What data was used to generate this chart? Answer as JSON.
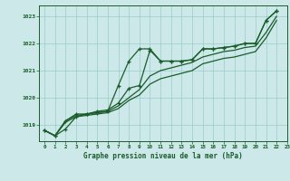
{
  "title": "Graphe pression niveau de la mer (hPa)",
  "background_color": "#cce8e8",
  "plot_bg_color": "#cce8e8",
  "grid_color": "#99cccc",
  "line_color": "#1a5c2a",
  "xlim": [
    -0.5,
    23
  ],
  "ylim": [
    1018.4,
    1023.4
  ],
  "yticks": [
    1019,
    1020,
    1021,
    1022,
    1023
  ],
  "xticks": [
    0,
    1,
    2,
    3,
    4,
    5,
    6,
    7,
    8,
    9,
    10,
    11,
    12,
    13,
    14,
    15,
    16,
    17,
    18,
    19,
    20,
    21,
    22,
    23
  ],
  "line_main": {
    "x": [
      0,
      1,
      2,
      3,
      4,
      5,
      6,
      7,
      8,
      9,
      10,
      11,
      12,
      13,
      14,
      15,
      16,
      17,
      18,
      19,
      20,
      21,
      22
    ],
    "y": [
      1018.8,
      1018.6,
      1018.85,
      1019.3,
      1019.4,
      1019.45,
      1019.5,
      1020.45,
      1021.35,
      1021.8,
      1021.8,
      1021.35,
      1021.35,
      1021.35,
      1021.4,
      1021.8,
      1021.8,
      1021.85,
      1021.9,
      1022.0,
      1022.0,
      1022.85,
      1023.2
    ],
    "marker": "+"
  },
  "line_a": {
    "x": [
      0,
      1,
      2,
      3,
      4,
      5,
      6,
      7,
      8,
      9,
      10,
      11,
      12,
      13,
      14,
      15,
      16,
      17,
      18,
      19,
      20,
      21,
      22
    ],
    "y": [
      1018.8,
      1018.6,
      1019.15,
      1019.4,
      1019.4,
      1019.5,
      1019.55,
      1019.8,
      1020.35,
      1020.45,
      1021.75,
      1021.35,
      1021.35,
      1021.35,
      1021.4,
      1021.8,
      1021.8,
      1021.85,
      1021.9,
      1022.0,
      1022.0,
      1022.85,
      1023.2
    ],
    "marker": "+"
  },
  "line_b": {
    "x": [
      0,
      1,
      2,
      3,
      4,
      5,
      6,
      7,
      8,
      9,
      10,
      11,
      12,
      13,
      14,
      15,
      16,
      17,
      18,
      19,
      20,
      21,
      22
    ],
    "y": [
      1018.8,
      1018.6,
      1019.15,
      1019.35,
      1019.4,
      1019.45,
      1019.5,
      1019.7,
      1020.0,
      1020.3,
      1020.8,
      1021.0,
      1021.1,
      1021.2,
      1021.3,
      1021.5,
      1021.6,
      1021.7,
      1021.75,
      1021.85,
      1021.9,
      1022.4,
      1023.0
    ],
    "marker": null
  },
  "line_c": {
    "x": [
      0,
      1,
      2,
      3,
      4,
      5,
      6,
      7,
      8,
      9,
      10,
      11,
      12,
      13,
      14,
      15,
      16,
      17,
      18,
      19,
      20,
      21,
      22
    ],
    "y": [
      1018.8,
      1018.6,
      1019.1,
      1019.3,
      1019.35,
      1019.4,
      1019.45,
      1019.6,
      1019.9,
      1020.1,
      1020.5,
      1020.7,
      1020.8,
      1020.9,
      1021.0,
      1021.25,
      1021.35,
      1021.45,
      1021.5,
      1021.6,
      1021.7,
      1022.2,
      1022.85
    ],
    "marker": null
  }
}
